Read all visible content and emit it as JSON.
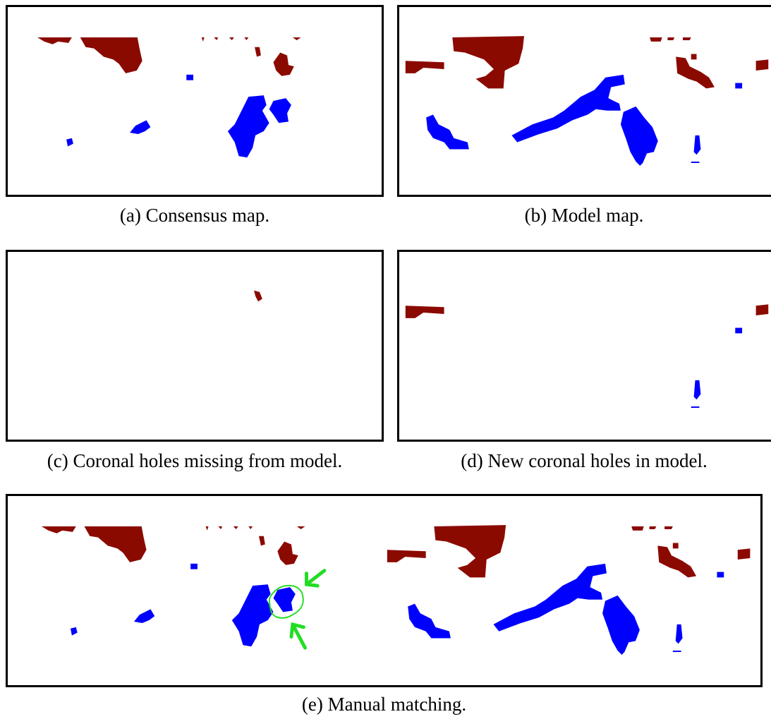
{
  "figure": {
    "panels": [
      {
        "id": "a",
        "caption": "(a) Consensus map."
      },
      {
        "id": "b",
        "caption": "(b) Model map."
      },
      {
        "id": "c",
        "caption": "(c) Coronal holes missing from model."
      },
      {
        "id": "d",
        "caption": "(d) New coronal holes in model."
      },
      {
        "id": "e",
        "caption": "(e) Manual matching."
      }
    ],
    "colors": {
      "negative_polarity": "#8b0a00",
      "positive_polarity": "#0000ff",
      "highlight": "#22dd22",
      "frame": "#000000"
    },
    "annotation_icons": [
      "arrow-icon",
      "arrow-icon"
    ]
  }
}
